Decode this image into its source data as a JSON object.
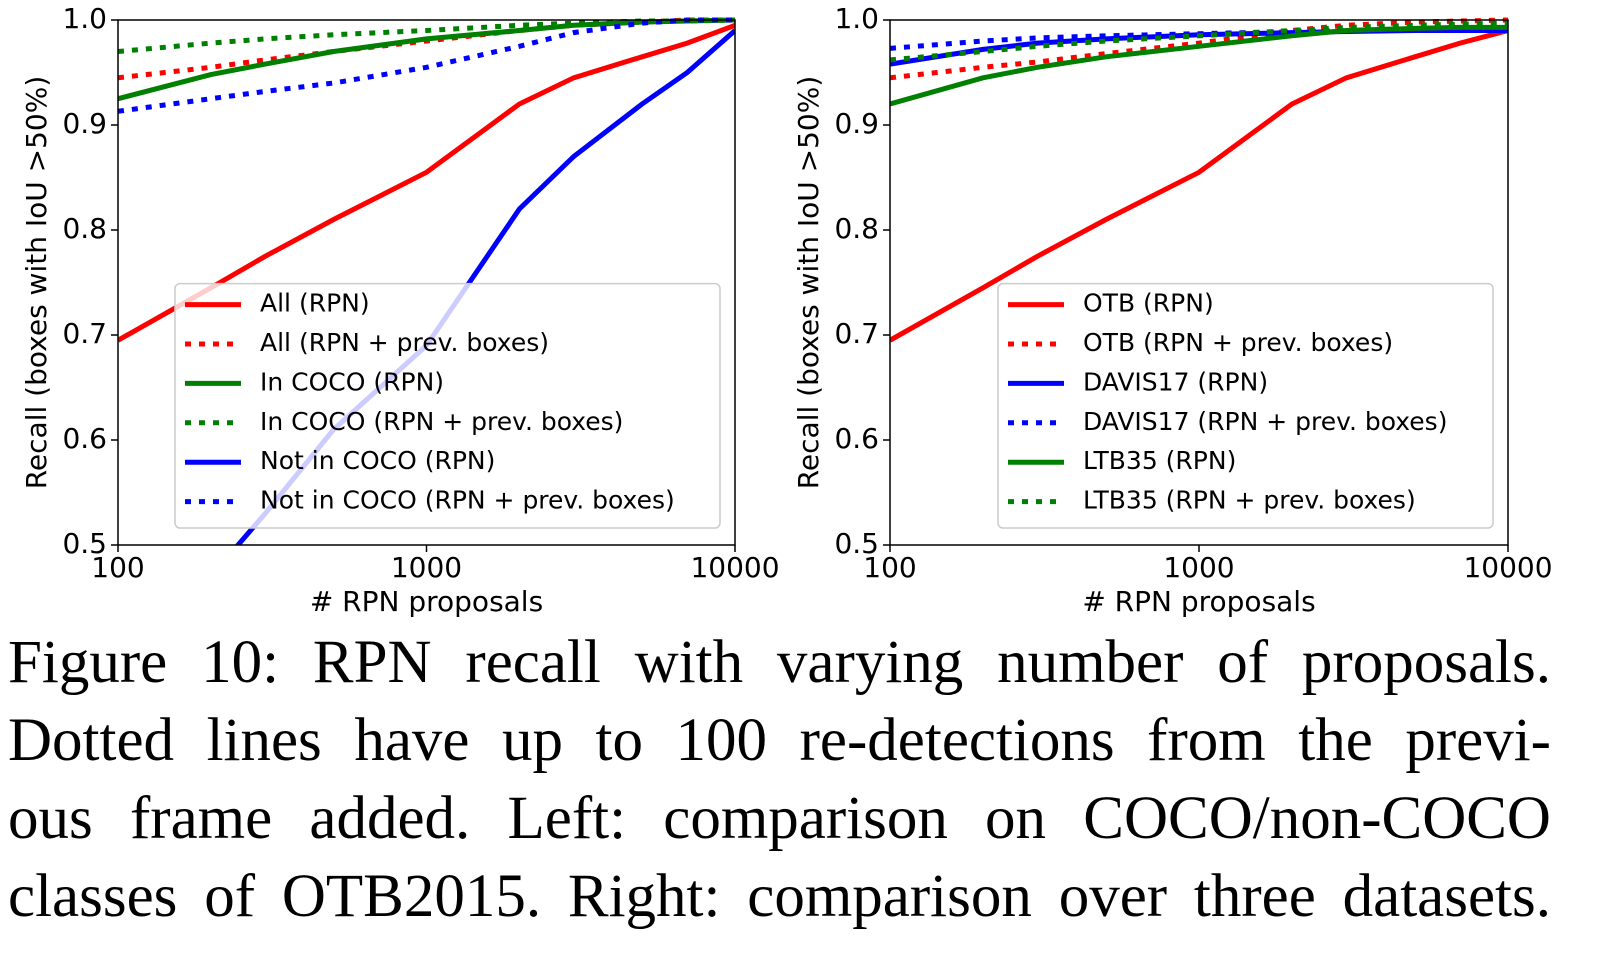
{
  "chart_data": [
    {
      "type": "line",
      "xlabel": "# RPN proposals",
      "ylabel": "Recall (boxes with IoU >50%)",
      "x": [
        100,
        200,
        300,
        500,
        1000,
        2000,
        3000,
        5000,
        7000,
        10000
      ],
      "xlim": [
        100,
        10000
      ],
      "xticks": [
        100,
        1000,
        10000
      ],
      "xscale": "log",
      "ylim": [
        0.5,
        1
      ],
      "yticks": [
        0.5,
        0.6,
        0.7,
        0.8,
        0.9,
        {
          "value": 1,
          "label": "1.0"
        }
      ],
      "grid": false,
      "legend": "lower right",
      "series": [
        {
          "name": "All (RPN)",
          "color": "#ff0000",
          "linestyle": "solid",
          "values": [
            0.695,
            0.745,
            0.775,
            0.81,
            0.855,
            0.92,
            0.945,
            0.965,
            0.978,
            0.995
          ]
        },
        {
          "name": "All (RPN + prev. boxes)",
          "color": "#ff0000",
          "linestyle": "dotted",
          "values": [
            0.945,
            0.955,
            0.962,
            0.97,
            0.98,
            0.99,
            0.995,
            0.998,
            1,
            1
          ]
        },
        {
          "name": "In COCO (RPN)",
          "color": "#008000",
          "linestyle": "solid",
          "values": [
            0.925,
            0.948,
            0.958,
            0.97,
            0.982,
            0.99,
            0.995,
            0.998,
            0.999,
            1
          ]
        },
        {
          "name": "In COCO (RPN + prev. boxes)",
          "color": "#008000",
          "linestyle": "dotted",
          "values": [
            0.97,
            0.978,
            0.982,
            0.986,
            0.99,
            0.995,
            0.997,
            0.999,
            0.999,
            1
          ]
        },
        {
          "name": "Not in COCO (RPN)",
          "color": "#0000ff",
          "linestyle": "solid",
          "values": [
            null,
            0.47,
            0.53,
            0.61,
            0.69,
            0.82,
            0.87,
            0.92,
            0.95,
            0.99
          ]
        },
        {
          "name": "Not in COCO (RPN + prev. boxes)",
          "color": "#0000ff",
          "linestyle": "dotted",
          "values": [
            0.913,
            0.925,
            0.932,
            0.94,
            0.955,
            0.975,
            0.988,
            0.997,
            1,
            1
          ]
        }
      ]
    },
    {
      "type": "line",
      "xlabel": "# RPN proposals",
      "ylabel": "Recall (boxes with IoU >50%)",
      "x": [
        100,
        200,
        300,
        500,
        1000,
        2000,
        3000,
        5000,
        7000,
        10000
      ],
      "xlim": [
        100,
        10000
      ],
      "xticks": [
        100,
        1000,
        10000
      ],
      "xscale": "log",
      "ylim": [
        0.5,
        1
      ],
      "yticks": [
        0.5,
        0.6,
        0.7,
        0.8,
        0.9,
        {
          "value": 1,
          "label": "1.0"
        }
      ],
      "grid": false,
      "legend": "lower right",
      "series": [
        {
          "name": "OTB (RPN)",
          "color": "#ff0000",
          "linestyle": "solid",
          "values": [
            0.695,
            0.745,
            0.775,
            0.81,
            0.855,
            0.92,
            0.945,
            0.965,
            0.978,
            0.99
          ]
        },
        {
          "name": "OTB (RPN + prev. boxes)",
          "color": "#ff0000",
          "linestyle": "dotted",
          "values": [
            0.945,
            0.955,
            0.96,
            0.968,
            0.978,
            0.99,
            0.995,
            0.998,
            0.999,
            1
          ]
        },
        {
          "name": "DAVIS17 (RPN)",
          "color": "#0000ff",
          "linestyle": "solid",
          "values": [
            0.958,
            0.972,
            0.978,
            0.982,
            0.986,
            0.988,
            0.989,
            0.99,
            0.99,
            0.99
          ]
        },
        {
          "name": "DAVIS17 (RPN + prev. boxes)",
          "color": "#0000ff",
          "linestyle": "dotted",
          "values": [
            0.973,
            0.98,
            0.983,
            0.985,
            0.987,
            0.989,
            0.99,
            0.991,
            0.991,
            0.991
          ]
        },
        {
          "name": "LTB35 (RPN)",
          "color": "#008000",
          "linestyle": "solid",
          "values": [
            0.92,
            0.945,
            0.955,
            0.965,
            0.975,
            0.985,
            0.99,
            0.992,
            0.993,
            0.993
          ]
        },
        {
          "name": "LTB35 (RPN + prev. boxes)",
          "color": "#008000",
          "linestyle": "dotted",
          "values": [
            0.962,
            0.97,
            0.975,
            0.98,
            0.985,
            0.99,
            0.993,
            0.995,
            0.996,
            0.997
          ]
        }
      ]
    }
  ],
  "caption_lines": [
    "Figure 10: RPN recall with varying number of proposals.",
    "Dotted lines have up to 100 re-detections from the previ-",
    "ous frame added. Left: comparison on COCO/non-COCO",
    "classes of OTB2015. Right: comparison over three datasets."
  ]
}
